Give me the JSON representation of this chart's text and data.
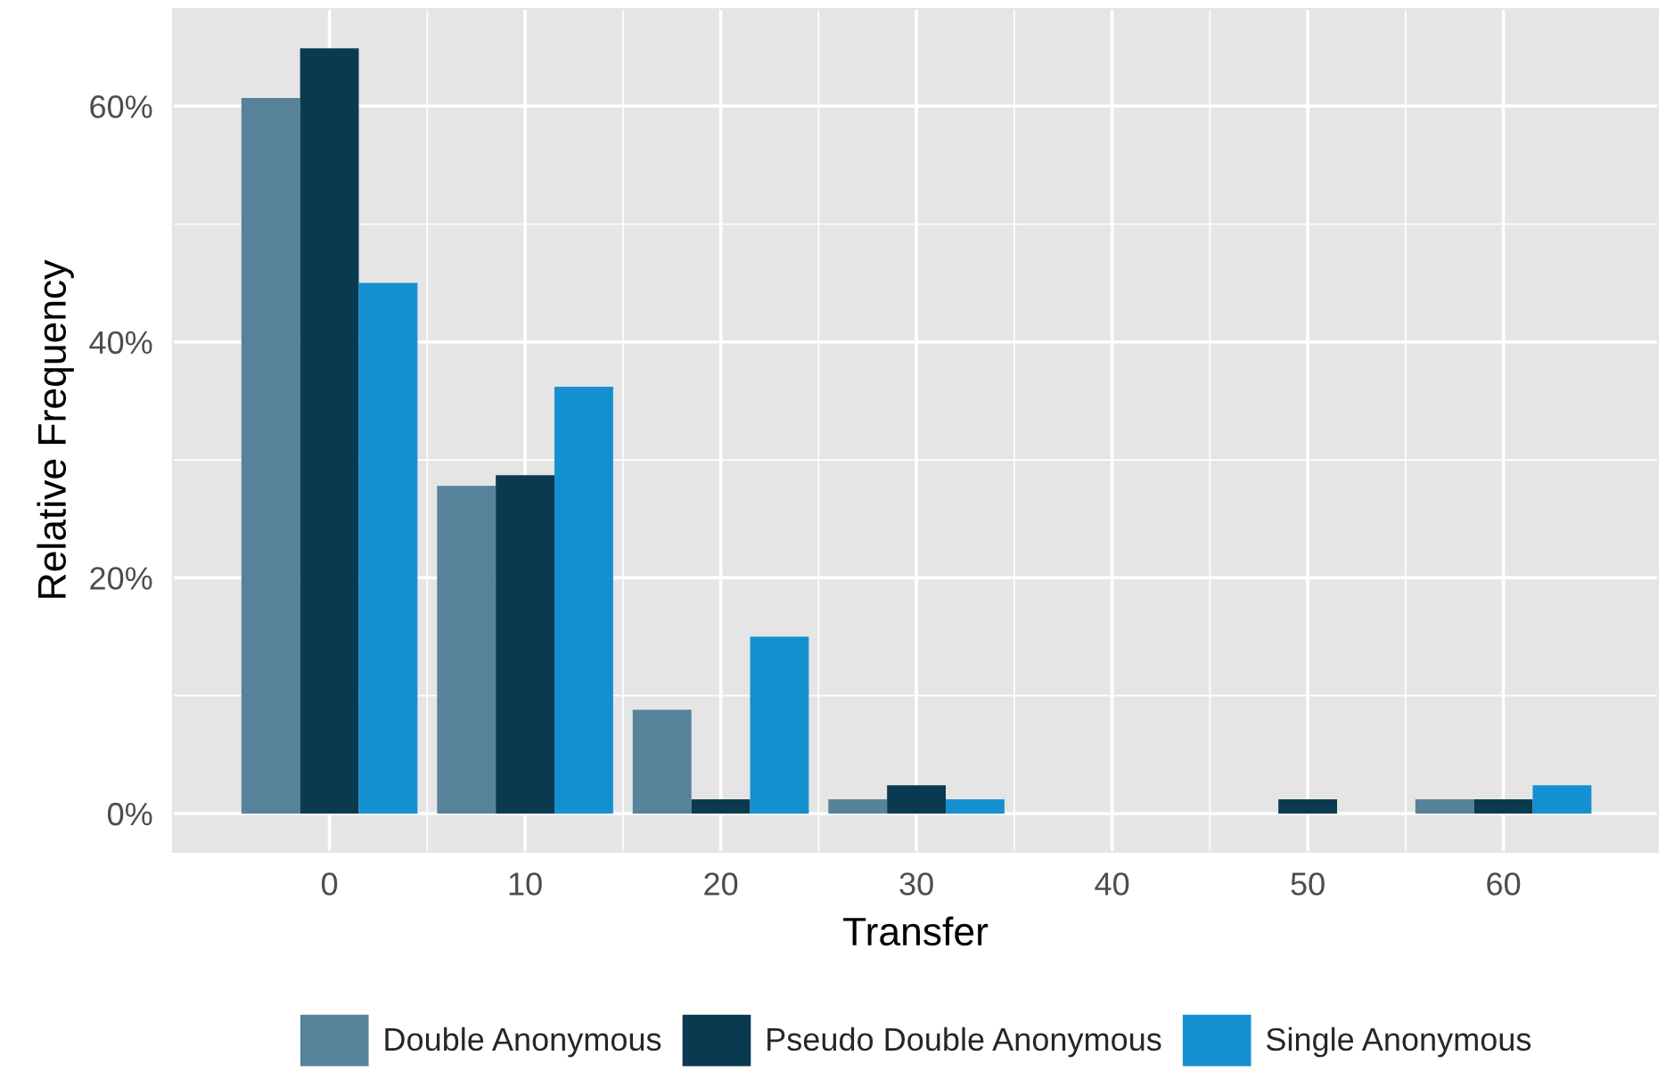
{
  "chart_data": {
    "type": "bar",
    "xlabel": "Transfer",
    "ylabel": "Relative Frequency",
    "x": [
      0,
      10,
      20,
      30,
      40,
      50,
      60
    ],
    "series": [
      {
        "name": "Double Anonymous",
        "color": "#56839a",
        "values": [
          60.7,
          27.8,
          8.8,
          1.2,
          0,
          0,
          1.2
        ]
      },
      {
        "name": "Pseudo Double Anonymous",
        "color": "#0a3a50",
        "values": [
          64.9,
          28.7,
          1.2,
          2.4,
          0,
          1.2,
          1.2
        ]
      },
      {
        "name": "Single Anonymous",
        "color": "#1490d0",
        "values": [
          45.0,
          36.2,
          15.0,
          1.2,
          0,
          0,
          2.4
        ]
      }
    ],
    "xlim": [
      -8,
      67.9
    ],
    "xticks": [
      0,
      10,
      20,
      30,
      40,
      50,
      60
    ],
    "ylim": [
      -3.25,
      68.25
    ],
    "yticks": [
      {
        "value": 0,
        "label": "0%"
      },
      {
        "value": 20,
        "label": "20%"
      },
      {
        "value": 40,
        "label": "40%"
      },
      {
        "value": 60,
        "label": "60%"
      }
    ],
    "grid": true,
    "legend": "bottom"
  }
}
